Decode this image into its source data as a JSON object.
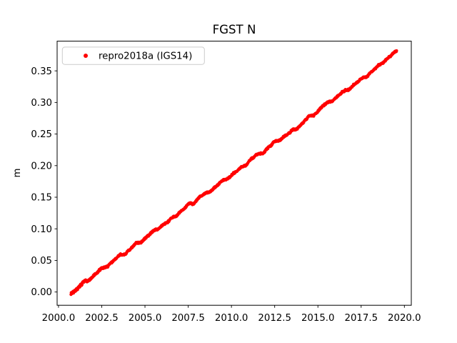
{
  "chart_data": {
    "type": "scatter",
    "title": "FGST N",
    "xlabel": "",
    "ylabel": "m",
    "grid": false,
    "xlim": [
      1999.92,
      2020.4
    ],
    "ylim": [
      -0.021,
      0.397
    ],
    "xticks": {
      "values": [
        2000.0,
        2002.5,
        2005.0,
        2007.5,
        2010.0,
        2012.5,
        2015.0,
        2017.5,
        2020.0
      ],
      "labels": [
        "2000.0",
        "2002.5",
        "2005.0",
        "2007.5",
        "2010.0",
        "2012.5",
        "2015.0",
        "2017.5",
        "2020.0"
      ]
    },
    "yticks": {
      "values": [
        0.0,
        0.05,
        0.1,
        0.15,
        0.2,
        0.25,
        0.3,
        0.35
      ],
      "labels": [
        "0.00",
        "0.05",
        "0.10",
        "0.15",
        "0.20",
        "0.25",
        "0.30",
        "0.35"
      ]
    },
    "legend": {
      "position": "upper left",
      "entries": [
        {
          "label": "repro2018a (IGS14)",
          "marker": "dot",
          "color": "#ff0000"
        }
      ]
    },
    "series": [
      {
        "name": "repro2018a (IGS14)",
        "color": "#ff0000",
        "marker": "point",
        "trend_m_per_yr": 0.0202,
        "x_start": 2000.72,
        "x_end": 2019.55,
        "points": [
          [
            2000.72,
            -0.001
          ],
          [
            2001.0,
            0.005
          ],
          [
            2002.0,
            0.025
          ],
          [
            2003.0,
            0.045
          ],
          [
            2004.0,
            0.065
          ],
          [
            2005.0,
            0.085
          ],
          [
            2006.0,
            0.106
          ],
          [
            2007.0,
            0.126
          ],
          [
            2008.0,
            0.146
          ],
          [
            2009.0,
            0.166
          ],
          [
            2010.0,
            0.186
          ],
          [
            2011.0,
            0.207
          ],
          [
            2012.0,
            0.227
          ],
          [
            2013.0,
            0.247
          ],
          [
            2014.0,
            0.267
          ],
          [
            2015.0,
            0.288
          ],
          [
            2016.0,
            0.308
          ],
          [
            2017.0,
            0.328
          ],
          [
            2018.0,
            0.348
          ],
          [
            2019.0,
            0.369
          ],
          [
            2019.55,
            0.38
          ]
        ]
      }
    ],
    "style": {
      "marker_px": 4.2,
      "band_jitter_m": 0.0011,
      "walk_step_m": 0.0009,
      "seasonal_m": 0.0012,
      "seed": 7,
      "n_rendered_points": 1400,
      "axes_color": "#000000",
      "legend_edge_color": "#cccccc",
      "background_color": "#ffffff"
    }
  }
}
